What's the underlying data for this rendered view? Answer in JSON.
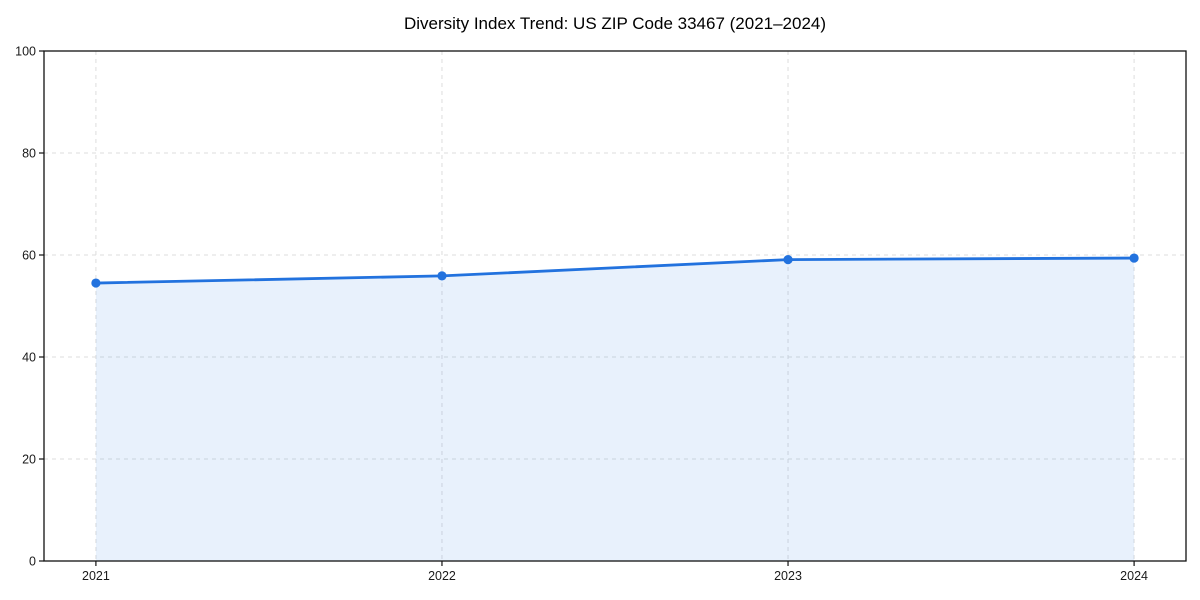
{
  "chart_data": {
    "type": "line",
    "title": "Diversity Index Trend: US ZIP Code 33467 (2021–2024)",
    "x": [
      2021,
      2022,
      2023,
      2024
    ],
    "series": [
      {
        "name": "Diversity Index",
        "values": [
          54.5,
          55.9,
          59.1,
          59.4
        ]
      }
    ],
    "xlabel": "",
    "ylabel": "",
    "xticks": [
      2021,
      2022,
      2023,
      2024
    ],
    "yticks": [
      0,
      20,
      40,
      60,
      80,
      100
    ],
    "xlim": [
      2020.85,
      2024.15
    ],
    "ylim": [
      0,
      100
    ],
    "grid": true,
    "grid_style": "dashed",
    "legend_position": "none",
    "area_fill": true,
    "markers": true,
    "colors": {
      "line": "#2272de",
      "marker": "#2272de",
      "fill_rgba": "rgba(34,114,222,0.10)",
      "grid": "#dddddd",
      "spine": "#111111",
      "background": "#ffffff",
      "title_text": "#000000",
      "tick_text": "#1a1a1a"
    }
  }
}
